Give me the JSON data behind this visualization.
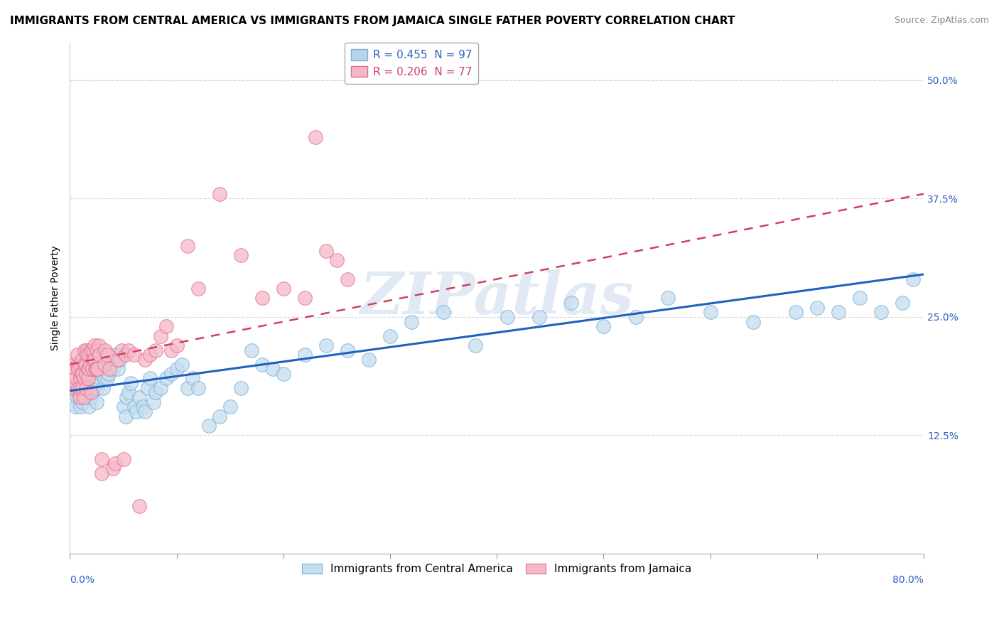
{
  "title": "IMMIGRANTS FROM CENTRAL AMERICA VS IMMIGRANTS FROM JAMAICA SINGLE FATHER POVERTY CORRELATION CHART",
  "source": "Source: ZipAtlas.com",
  "ylabel": "Single Father Poverty",
  "yticks": [
    0.0,
    0.125,
    0.25,
    0.375,
    0.5
  ],
  "ytick_labels": [
    "",
    "12.5%",
    "25.0%",
    "37.5%",
    "50.0%"
  ],
  "xlim": [
    0.0,
    0.8
  ],
  "ylim": [
    0.0,
    0.54
  ],
  "watermark": "ZIPatlas",
  "legend_entries": [
    {
      "label": "R = 0.455  N = 97",
      "color": "#b8d4ed"
    },
    {
      "label": "R = 0.206  N = 77",
      "color": "#f5b8c8"
    }
  ],
  "series_central_america": {
    "color": "#c5ddf0",
    "edge_color": "#7aafd4",
    "x": [
      0.005,
      0.006,
      0.007,
      0.008,
      0.008,
      0.009,
      0.01,
      0.01,
      0.01,
      0.011,
      0.012,
      0.012,
      0.013,
      0.014,
      0.015,
      0.015,
      0.016,
      0.017,
      0.018,
      0.018,
      0.019,
      0.02,
      0.02,
      0.021,
      0.022,
      0.023,
      0.024,
      0.025,
      0.025,
      0.026,
      0.027,
      0.028,
      0.03,
      0.031,
      0.032,
      0.033,
      0.035,
      0.036,
      0.038,
      0.04,
      0.042,
      0.043,
      0.045,
      0.047,
      0.05,
      0.052,
      0.053,
      0.055,
      0.057,
      0.06,
      0.062,
      0.065,
      0.068,
      0.07,
      0.073,
      0.075,
      0.078,
      0.08,
      0.085,
      0.09,
      0.095,
      0.1,
      0.105,
      0.11,
      0.115,
      0.12,
      0.13,
      0.14,
      0.15,
      0.16,
      0.17,
      0.18,
      0.19,
      0.2,
      0.22,
      0.24,
      0.26,
      0.28,
      0.3,
      0.32,
      0.35,
      0.38,
      0.41,
      0.44,
      0.47,
      0.5,
      0.53,
      0.56,
      0.6,
      0.64,
      0.68,
      0.7,
      0.72,
      0.74,
      0.76,
      0.78,
      0.79
    ],
    "y": [
      0.175,
      0.155,
      0.165,
      0.17,
      0.18,
      0.185,
      0.155,
      0.165,
      0.175,
      0.18,
      0.17,
      0.16,
      0.175,
      0.165,
      0.17,
      0.19,
      0.175,
      0.165,
      0.155,
      0.18,
      0.195,
      0.165,
      0.175,
      0.17,
      0.185,
      0.175,
      0.195,
      0.18,
      0.16,
      0.175,
      0.195,
      0.185,
      0.19,
      0.175,
      0.185,
      0.195,
      0.185,
      0.19,
      0.2,
      0.195,
      0.205,
      0.21,
      0.195,
      0.205,
      0.155,
      0.145,
      0.165,
      0.17,
      0.18,
      0.155,
      0.15,
      0.165,
      0.155,
      0.15,
      0.175,
      0.185,
      0.16,
      0.17,
      0.175,
      0.185,
      0.19,
      0.195,
      0.2,
      0.175,
      0.185,
      0.175,
      0.135,
      0.145,
      0.155,
      0.175,
      0.215,
      0.2,
      0.195,
      0.19,
      0.21,
      0.22,
      0.215,
      0.205,
      0.23,
      0.245,
      0.255,
      0.22,
      0.25,
      0.25,
      0.265,
      0.24,
      0.25,
      0.27,
      0.255,
      0.245,
      0.255,
      0.26,
      0.255,
      0.27,
      0.255,
      0.265,
      0.29
    ]
  },
  "series_jamaica": {
    "color": "#f5b8c8",
    "edge_color": "#e07090",
    "x": [
      0.003,
      0.004,
      0.005,
      0.005,
      0.006,
      0.007,
      0.007,
      0.008,
      0.008,
      0.009,
      0.01,
      0.01,
      0.01,
      0.011,
      0.011,
      0.012,
      0.012,
      0.013,
      0.013,
      0.014,
      0.014,
      0.015,
      0.015,
      0.015,
      0.016,
      0.016,
      0.017,
      0.017,
      0.018,
      0.018,
      0.019,
      0.02,
      0.02,
      0.021,
      0.022,
      0.022,
      0.023,
      0.023,
      0.024,
      0.025,
      0.025,
      0.026,
      0.027,
      0.028,
      0.03,
      0.03,
      0.032,
      0.033,
      0.035,
      0.037,
      0.04,
      0.042,
      0.045,
      0.048,
      0.05,
      0.052,
      0.055,
      0.06,
      0.065,
      0.07,
      0.075,
      0.08,
      0.085,
      0.09,
      0.095,
      0.1,
      0.11,
      0.12,
      0.14,
      0.16,
      0.18,
      0.2,
      0.22,
      0.23,
      0.24,
      0.25,
      0.26
    ],
    "y": [
      0.175,
      0.2,
      0.18,
      0.195,
      0.185,
      0.2,
      0.21,
      0.175,
      0.195,
      0.165,
      0.185,
      0.175,
      0.2,
      0.19,
      0.205,
      0.175,
      0.19,
      0.185,
      0.165,
      0.2,
      0.215,
      0.175,
      0.19,
      0.2,
      0.215,
      0.21,
      0.195,
      0.185,
      0.195,
      0.21,
      0.2,
      0.17,
      0.215,
      0.195,
      0.205,
      0.215,
      0.22,
      0.205,
      0.195,
      0.195,
      0.215,
      0.195,
      0.22,
      0.21,
      0.085,
      0.1,
      0.2,
      0.215,
      0.21,
      0.195,
      0.09,
      0.095,
      0.205,
      0.215,
      0.1,
      0.21,
      0.215,
      0.21,
      0.05,
      0.205,
      0.21,
      0.215,
      0.23,
      0.24,
      0.215,
      0.22,
      0.325,
      0.28,
      0.38,
      0.315,
      0.27,
      0.28,
      0.27,
      0.44,
      0.32,
      0.31,
      0.29
    ]
  },
  "trend_central_america": {
    "color": "#2060c0",
    "x_start": 0.0,
    "y_start": 0.172,
    "x_end": 0.8,
    "y_end": 0.295,
    "linewidth": 2.2
  },
  "trend_jamaica": {
    "color": "#d04060",
    "linestyle": "--",
    "x_start": 0.0,
    "y_start": 0.2,
    "x_end": 0.8,
    "y_end": 0.38,
    "linewidth": 1.8
  },
  "title_fontsize": 11,
  "source_fontsize": 9,
  "axis_label_fontsize": 10,
  "tick_fontsize": 10,
  "legend_fontsize": 11,
  "background_color": "#ffffff",
  "grid_color": "#d8d8d8"
}
